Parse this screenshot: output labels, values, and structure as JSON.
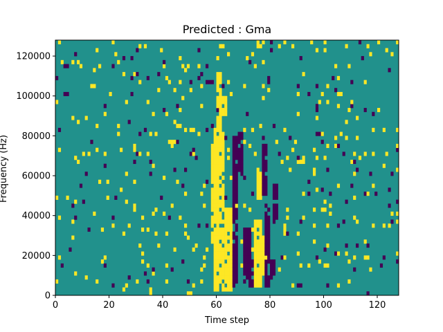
{
  "chart_data": {
    "type": "heatmap",
    "title": "Predicted : Gma",
    "xlabel": "Time step",
    "ylabel": "Frequency (Hz)",
    "xlim": [
      0,
      128
    ],
    "ylim": [
      0,
      128000
    ],
    "x_ticks": [
      0,
      20,
      40,
      60,
      80,
      100,
      120
    ],
    "y_ticks": [
      0,
      20000,
      40000,
      60000,
      80000,
      100000,
      120000
    ],
    "x_tick_labels": [
      "0",
      "20",
      "40",
      "60",
      "80",
      "100",
      "120"
    ],
    "y_tick_labels": [
      "0",
      "20000",
      "40000",
      "60000",
      "80000",
      "100000",
      "120000"
    ],
    "n_time_steps": 128,
    "n_freq_bins": 64,
    "freq_bin_hz": 2000,
    "colors": {
      "low": "#440154",
      "mid": "#21918c",
      "high": "#fde725"
    },
    "background_class": "mid",
    "cells_high": [
      {
        "t": [
          59,
          63
        ],
        "f": [
          2000,
          84000
        ]
      },
      {
        "t": [
          63,
          66
        ],
        "f": [
          2000,
          44000
        ]
      },
      {
        "t": [
          58,
          61
        ],
        "f": [
          26000,
          76000
        ]
      },
      {
        "t": [
          60,
          62
        ],
        "f": [
          84000,
          112000
        ]
      },
      {
        "t": [
          61,
          64
        ],
        "f": [
          90000,
          100000
        ]
      },
      {
        "t": [
          74,
          77
        ],
        "f": [
          4000,
          38000
        ]
      },
      {
        "t": [
          77,
          79
        ],
        "f": [
          10000,
          30000
        ]
      },
      {
        "t": [
          75,
          77
        ],
        "f": [
          48000,
          64000
        ]
      },
      {
        "t": [
          91,
          93
        ],
        "f": [
          66000,
          70000
        ]
      }
    ],
    "cells_low": [
      {
        "t": [
          66,
          68
        ],
        "f": [
          4000,
          80000
        ]
      },
      {
        "t": [
          68,
          70
        ],
        "f": [
          60000,
          82000
        ]
      },
      {
        "t": [
          70,
          73
        ],
        "f": [
          4000,
          34000
        ]
      },
      {
        "t": [
          72,
          74
        ],
        "f": [
          4000,
          18000
        ]
      },
      {
        "t": [
          78,
          80
        ],
        "f": [
          4000,
          46000
        ]
      },
      {
        "t": [
          80,
          82
        ],
        "f": [
          8000,
          18000
        ]
      },
      {
        "t": [
          81,
          83
        ],
        "f": [
          36000,
          56000
        ]
      },
      {
        "t": [
          77,
          79
        ],
        "f": [
          50000,
          76000
        ]
      },
      {
        "t": [
          57,
          59
        ],
        "f": [
          106000,
          108000
        ]
      }
    ],
    "scatter_seed": 17,
    "scatter_low_prob": 0.018,
    "scatter_high_prob": 0.035
  }
}
